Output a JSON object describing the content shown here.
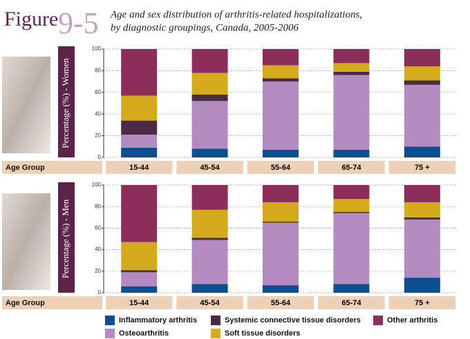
{
  "figure_label": "Figure",
  "figure_number": "9-5",
  "title": [
    "Age and sex distribution of arthritis-related hospitalizations,",
    "by diagnostic groupings, Canada, 2005-2006"
  ],
  "chart_data": [
    {
      "type": "bar",
      "stacked": true,
      "ylabel": "Percentage (%) - Women",
      "xlabel": "Age Group",
      "categories": [
        "15-44",
        "45-54",
        "55-64",
        "65-74",
        "75 +"
      ],
      "series": [
        {
          "name": "Inflammatory arthritis",
          "color": "#0b4f8e",
          "values": [
            9,
            8,
            7,
            7,
            10
          ]
        },
        {
          "name": "Osteoarthritis",
          "color": "#b48bc0",
          "values": [
            12,
            44,
            63,
            69,
            57
          ]
        },
        {
          "name": "Systemic connective tissue disorders",
          "color": "#4a2b46",
          "values": [
            13,
            6,
            3,
            3,
            4
          ]
        },
        {
          "name": "Soft tissue disorders",
          "color": "#d5ab1d",
          "values": [
            23,
            20,
            12,
            8,
            13
          ]
        },
        {
          "name": "Other arthritis",
          "color": "#8c2d5b",
          "values": [
            43,
            22,
            15,
            13,
            16
          ]
        }
      ],
      "ylim": [
        0,
        100
      ],
      "yticks": [
        0,
        20,
        40,
        60,
        80,
        100
      ],
      "grid": true
    },
    {
      "type": "bar",
      "stacked": true,
      "ylabel": "Percentage (%) - Men",
      "xlabel": "Age Group",
      "categories": [
        "15-44",
        "45-54",
        "55-64",
        "65-74",
        "75 +"
      ],
      "series": [
        {
          "name": "Inflammatory arthritis",
          "color": "#0b4f8e",
          "values": [
            6,
            8,
            7,
            8,
            14
          ]
        },
        {
          "name": "Osteoarthritis",
          "color": "#b48bc0",
          "values": [
            13,
            41,
            58,
            66,
            54
          ]
        },
        {
          "name": "Systemic connective tissue disorders",
          "color": "#4a2b46",
          "values": [
            2,
            2,
            1,
            1,
            2
          ]
        },
        {
          "name": "Soft tissue disorders",
          "color": "#d5ab1d",
          "values": [
            26,
            26,
            18,
            12,
            14
          ]
        },
        {
          "name": "Other arthritis",
          "color": "#8c2d5b",
          "values": [
            53,
            23,
            16,
            13,
            16
          ]
        }
      ],
      "ylim": [
        0,
        100
      ],
      "yticks": [
        0,
        20,
        40,
        60,
        80,
        100
      ],
      "grid": true
    }
  ]
}
